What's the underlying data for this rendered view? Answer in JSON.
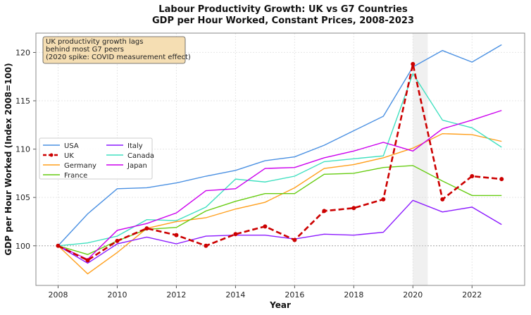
{
  "chart_data": {
    "type": "line",
    "title": "Labour Productivity Growth: UK vs G7 Countries",
    "subtitle": "GDP per Hour Worked, Constant Prices, 2008-2023",
    "xlabel": "Year",
    "ylabel": "GDP per Hour Worked (Index 2008=100)",
    "xlim": [
      2007.25,
      2023.78
    ],
    "ylim": [
      95.9,
      122.0
    ],
    "xticks": [
      2008,
      2010,
      2012,
      2014,
      2016,
      2018,
      2020,
      2022
    ],
    "yticks": [
      100,
      105,
      110,
      115,
      120
    ],
    "grid": true,
    "legend_position": "center-left",
    "reference_line": 100,
    "shaded_region": [
      2020,
      2020.5
    ],
    "annotation": [
      "UK productivity growth lags",
      "behind most G7 peers",
      "(2020 spike: COVID measurement effect)"
    ],
    "x": [
      2008,
      2009,
      2010,
      2011,
      2012,
      2013,
      2014,
      2015,
      2016,
      2017,
      2018,
      2019,
      2020,
      2021,
      2022,
      2023
    ],
    "series": [
      {
        "name": "USA",
        "color": "#4a90e2",
        "dashed": false,
        "values": [
          100,
          103.3,
          105.9,
          106.0,
          106.5,
          107.2,
          107.8,
          108.8,
          109.2,
          110.4,
          111.9,
          113.4,
          118.5,
          120.2,
          119.0,
          120.8
        ]
      },
      {
        "name": "UK",
        "color": "#cc0000",
        "dashed": true,
        "values": [
          100,
          98.5,
          100.5,
          101.8,
          101.1,
          100.0,
          101.2,
          102.0,
          100.6,
          103.6,
          103.9,
          104.8,
          118.8,
          104.8,
          107.2,
          106.9
        ]
      },
      {
        "name": "Germany",
        "color": "#ff9f1c",
        "dashed": false,
        "values": [
          100,
          97.1,
          99.3,
          101.8,
          102.5,
          102.9,
          103.8,
          104.5,
          106.0,
          108.0,
          108.4,
          109.1,
          110.1,
          111.6,
          111.5,
          110.8
        ]
      },
      {
        "name": "France",
        "color": "#66cc11",
        "dashed": false,
        "values": [
          100,
          99.1,
          100.5,
          101.7,
          101.9,
          103.6,
          104.6,
          105.4,
          105.4,
          107.4,
          107.5,
          108.1,
          108.3,
          106.7,
          105.2,
          105.2
        ]
      },
      {
        "name": "Italy",
        "color": "#8c1aff",
        "dashed": false,
        "values": [
          100,
          98.2,
          100.2,
          100.9,
          100.2,
          101.0,
          101.1,
          101.1,
          100.7,
          101.2,
          101.1,
          101.4,
          104.7,
          103.5,
          104.0,
          102.2
        ]
      },
      {
        "name": "Canada",
        "color": "#40e0c0",
        "dashed": false,
        "values": [
          100,
          100.3,
          101.0,
          102.7,
          102.6,
          104.0,
          106.9,
          106.6,
          107.2,
          108.7,
          109.0,
          109.3,
          117.8,
          113.0,
          112.2,
          110.2
        ]
      },
      {
        "name": "Japan",
        "color": "#cc00ee",
        "dashed": false,
        "values": [
          100,
          98.6,
          101.6,
          102.3,
          103.4,
          105.7,
          105.9,
          108.0,
          108.1,
          109.1,
          109.8,
          110.7,
          109.8,
          112.1,
          113.0,
          114.0
        ]
      }
    ]
  }
}
